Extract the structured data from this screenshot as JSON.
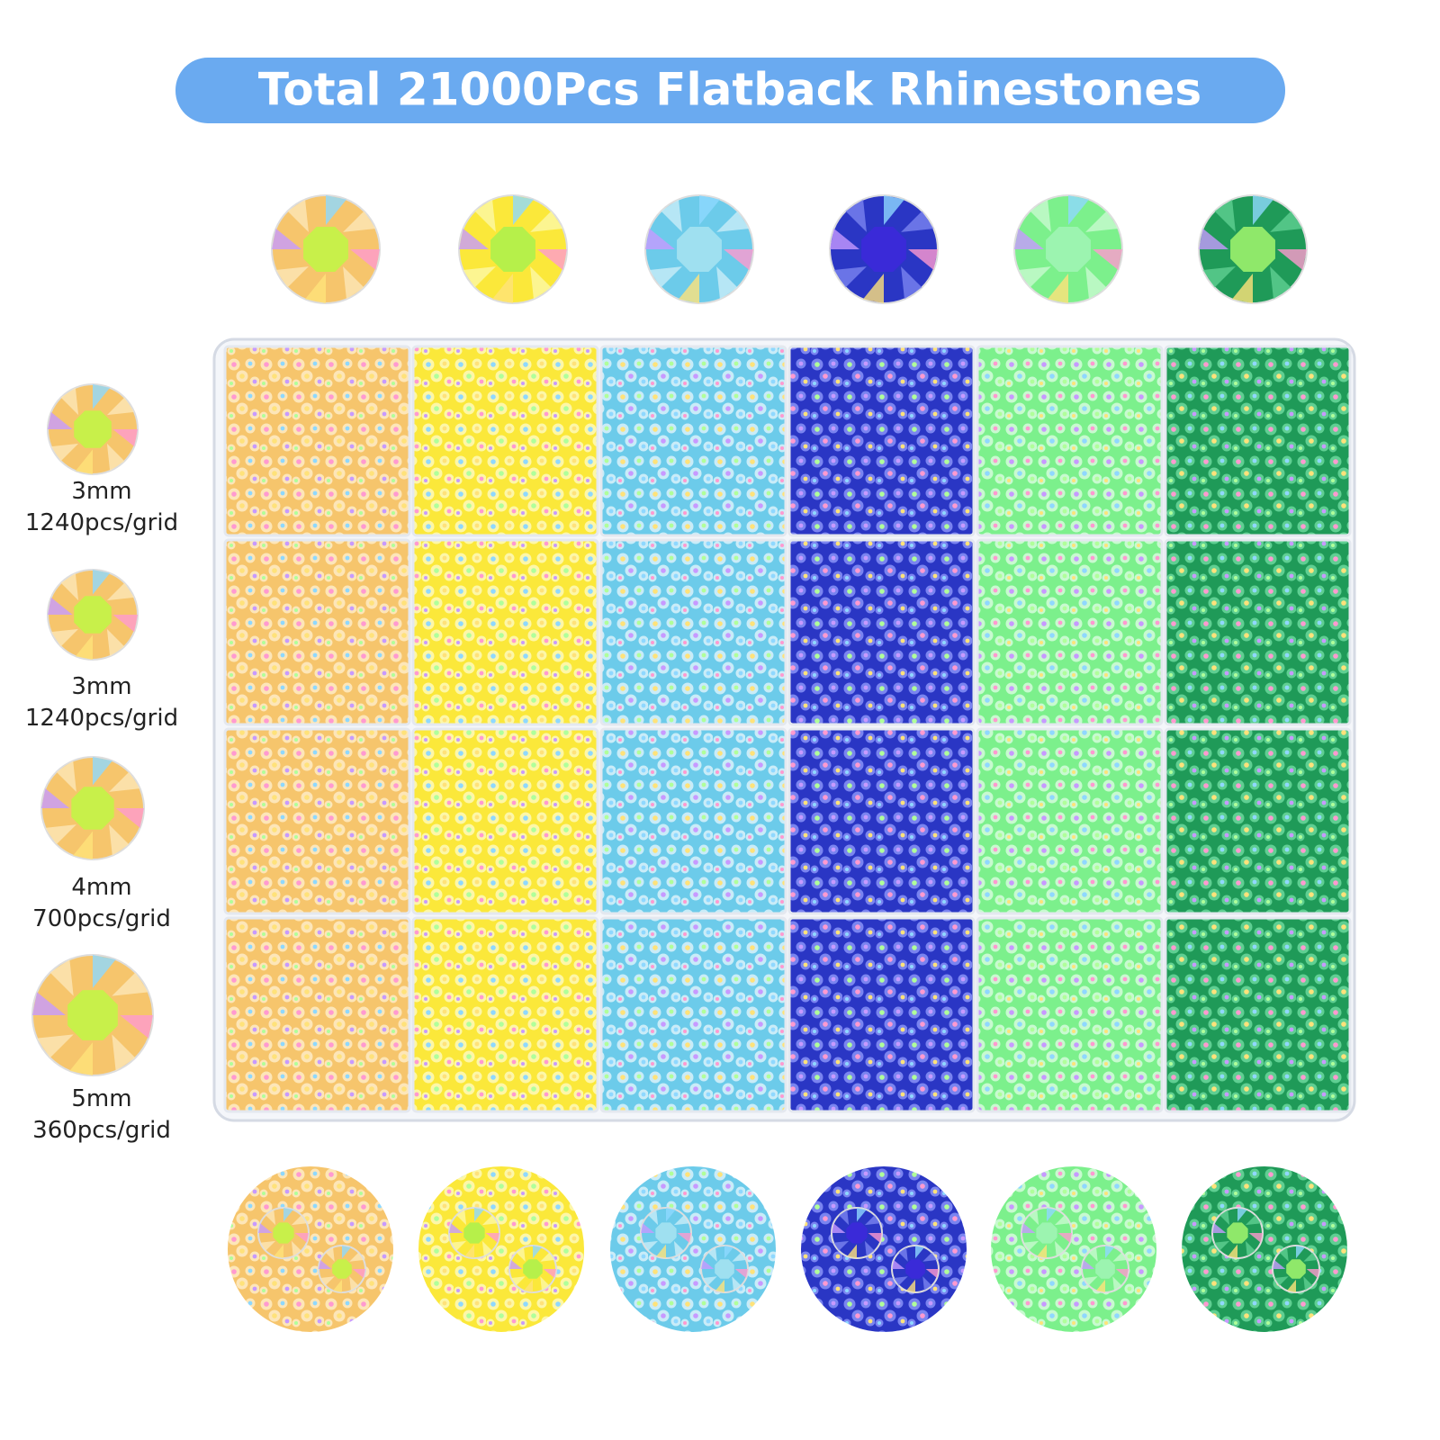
{
  "header": {
    "title": "Total 21000Pcs Flatback Rhinestones"
  },
  "sizes": [
    {
      "size": "3mm",
      "count": "1240pcs/grid"
    },
    {
      "size": "3mm",
      "count": "1240pcs/grid"
    },
    {
      "size": "4mm",
      "count": "700pcs/grid"
    },
    {
      "size": "5mm",
      "count": "360pcs/grid"
    }
  ]
}
